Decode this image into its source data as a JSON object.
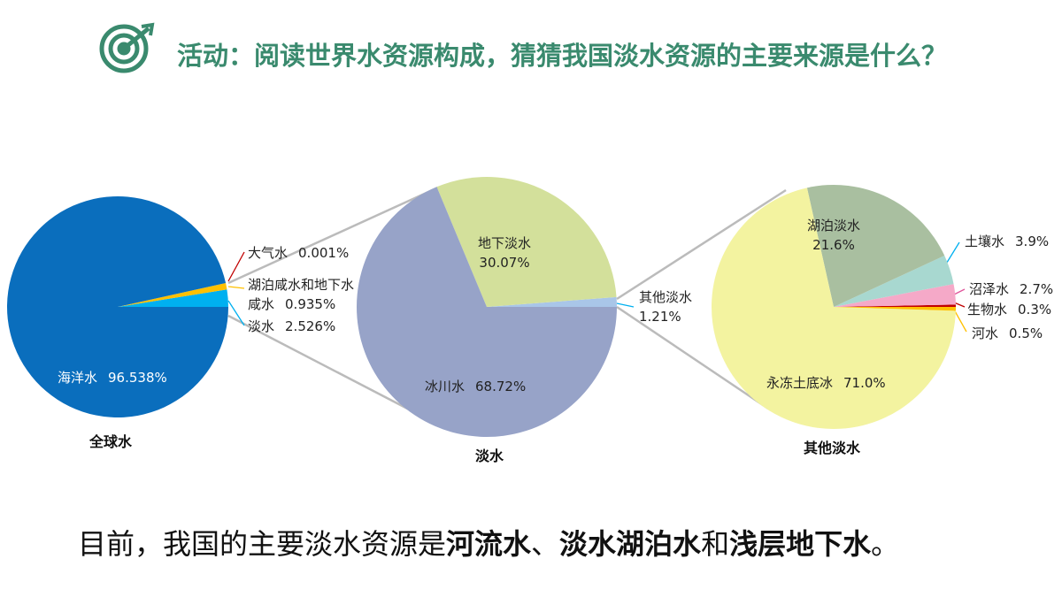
{
  "title": "活动：阅读世界水资源构成，猜猜我国淡水资源的主要来源是什么？",
  "chart_data": [
    {
      "type": "pie",
      "title": "全球水",
      "categories": [
        "淡水",
        "湖泊咸水和地下水咸水",
        "大气水",
        "海洋水"
      ],
      "values": [
        2.526,
        0.935,
        0.001,
        96.538
      ],
      "value_labels": [
        "2.526%",
        "0.935%",
        "0.001%",
        "96.538%"
      ],
      "colors": [
        "#00b0f0",
        "#ffc000",
        "#c00000",
        "#0a6ebd"
      ]
    },
    {
      "type": "pie",
      "title": "淡水",
      "categories": [
        "其他淡水",
        "地下淡水",
        "冰川水"
      ],
      "values": [
        1.21,
        30.07,
        68.72
      ],
      "value_labels": [
        "1.21%",
        "30.07%",
        "68.72%"
      ],
      "colors": [
        "#a9c6e8",
        "#d3e09b",
        "#97a3c8"
      ]
    },
    {
      "type": "pie",
      "title": "其他淡水",
      "categories": [
        "生物水",
        "沼泽水",
        "土壤水",
        "湖泊淡水",
        "永冻土底冰",
        "河水"
      ],
      "values": [
        0.3,
        2.7,
        3.9,
        21.6,
        71.0,
        0.5
      ],
      "value_labels": [
        "0.3%",
        "2.7%",
        "3.9%",
        "21.6%",
        "71.0%",
        "0.5%"
      ],
      "colors": [
        "#c00000",
        "#f5a9c8",
        "#a8d8d0",
        "#a9bfa0",
        "#f3f3a0",
        "#ffc000"
      ]
    }
  ],
  "conclusion": [
    {
      "text": "目前，我国的主要淡水资源是",
      "bold": false
    },
    {
      "text": "河流水",
      "bold": true
    },
    {
      "text": "、",
      "bold": false
    },
    {
      "text": "淡水湖泊水",
      "bold": true
    },
    {
      "text": "和",
      "bold": false
    },
    {
      "text": "浅层地下水",
      "bold": true
    },
    {
      "text": "。",
      "bold": false
    }
  ]
}
